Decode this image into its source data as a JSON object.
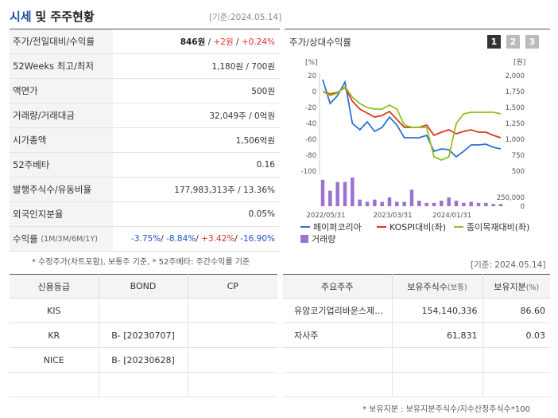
{
  "header": {
    "title_a": "시세",
    "title_b": "및 주주현황",
    "date": "[기준:2024.05.14]"
  },
  "summary": [
    {
      "label": "주가/전일대비/수익률",
      "price": "846원",
      "change": "+2원",
      "rate": "+0.24%"
    },
    {
      "label": "52Weeks 최고/최저",
      "value": "1,180원 / 700원"
    },
    {
      "label": "액면가",
      "value": "500원"
    },
    {
      "label": "거래량/거래대금",
      "value": "32,049주 / 0억원"
    },
    {
      "label": "시가총액",
      "value": "1,506억원"
    },
    {
      "label": "52주베타",
      "value": "0.16"
    },
    {
      "label": "발행주식수/유동비율",
      "value": "177,983,313주 / 13.36%"
    },
    {
      "label": "외국인지분율",
      "value": "0.05%"
    },
    {
      "label": "수익률",
      "label_small": "(1M/3M/6M/1Y)",
      "r1": "-3.75%",
      "r2": "-8.84%",
      "r3": "+3.42%",
      "r4": "-16.90%"
    }
  ],
  "note_left": "* 수정주가(차트포함), 보통주 기준, * 52주베타: 주간수익률 기준",
  "note_right_date": "[기준: 2024.05.14]",
  "chart": {
    "title": "주가/상대수익률",
    "pages": [
      "1",
      "2",
      "3"
    ],
    "left_unit": "[%]",
    "right_unit": "[원]",
    "legend": [
      "페이퍼코리아",
      "KOSPI대비(좌)",
      "종이목재대비(좌)",
      "거래량"
    ],
    "colors": {
      "price": "#2f6fd6",
      "kospi": "#d83a1e",
      "paper": "#8cc31e",
      "volume": "#9b72cf"
    }
  },
  "chart_data": {
    "type": "line",
    "x_ticks": [
      "2022/05/31",
      "2023/03/31",
      "2024/01/31"
    ],
    "y_left_ticks": [
      "20",
      "0",
      "-20",
      "-40",
      "-60",
      "-80",
      "-100"
    ],
    "y_left_range": [
      -100,
      20
    ],
    "y_right_ticks": [
      "2,000",
      "1,750",
      "1,500",
      "1,250",
      "1,000",
      "750",
      "500"
    ],
    "y_right_range": [
      500,
      2000
    ],
    "volume_ticks": [
      "250,000",
      "0"
    ],
    "series": [
      {
        "name": "페이퍼코리아",
        "axis": "left",
        "values": [
          15,
          -15,
          -5,
          12,
          -40,
          -48,
          -38,
          -50,
          -45,
          -32,
          -42,
          -58,
          -58,
          -58,
          -55,
          -75,
          -72,
          -73,
          -82,
          -75,
          -67,
          -67,
          -66,
          -70,
          -72
        ]
      },
      {
        "name": "KOSPI대비(좌)",
        "axis": "left",
        "values": [
          0,
          -3,
          -1,
          5,
          -12,
          -22,
          -27,
          -32,
          -30,
          -25,
          -35,
          -45,
          -45,
          -45,
          -42,
          -55,
          -51,
          -48,
          -53,
          -50,
          -48,
          -51,
          -51,
          -55,
          -58
        ]
      },
      {
        "name": "종이목재대비(좌)",
        "axis": "left",
        "values": [
          0,
          -5,
          -2,
          6,
          -7,
          -15,
          -20,
          -22,
          -22,
          -17,
          -22,
          -42,
          -45,
          -45,
          -45,
          -82,
          -86,
          -82,
          -40,
          -28,
          -26,
          -26,
          -26,
          -26,
          -28
        ]
      }
    ],
    "volume": [
      240000,
      140000,
      220000,
      220000,
      260000,
      60000,
      40000,
      60000,
      40000,
      80000,
      40000,
      40000,
      150000,
      50000,
      30000,
      30000,
      50000,
      80000,
      50000,
      30000,
      40000,
      30000,
      30000,
      20000,
      20000
    ]
  },
  "credit": {
    "headers": [
      "신용등급",
      "BOND",
      "CP"
    ],
    "rows": [
      [
        "KIS",
        "",
        ""
      ],
      [
        "KR",
        "B-  [20230707]",
        ""
      ],
      [
        "NICE",
        "B-  [20230628]",
        ""
      ],
      [
        "",
        "",
        ""
      ]
    ]
  },
  "holders": {
    "headers": [
      "주요주주",
      "보유주식수",
      "(보통)",
      "보유지분",
      "(%)"
    ],
    "rows": [
      [
        "유암코기업리바운스제…",
        "154,140,336",
        "86.60"
      ],
      [
        "자사주",
        "61,831",
        "0.03"
      ],
      [
        "",
        "",
        ""
      ],
      [
        "",
        "",
        ""
      ]
    ]
  },
  "note_bottom": "* 보유지분 : 보유지분주식수/지수산정주식수*100"
}
